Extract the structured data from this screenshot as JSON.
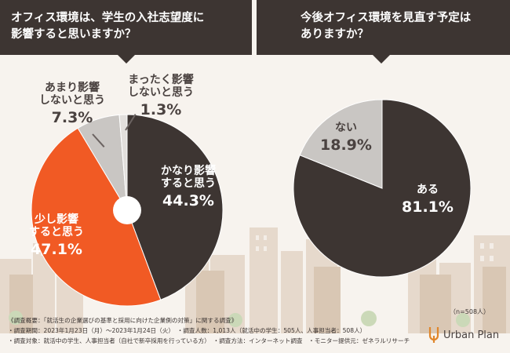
{
  "header_left": {
    "line1": "オフィス環境は、学生の入社志望度に",
    "line2": "影響すると思いますか？"
  },
  "header_right": {
    "line1": "今後オフィス環境を見直す予定は",
    "line2": "ありますか？"
  },
  "chart_data": [
    {
      "type": "pie",
      "title": "オフィス環境は、学生の入社志望度に影響すると思いますか？",
      "slices": [
        {
          "label_1": "かなり影響",
          "label_2": "すると思う",
          "value": 44.3,
          "value_text": "44.3%",
          "color": "#3d3532"
        },
        {
          "label_1": "少し影響",
          "label_2": "すると思う",
          "value": 47.1,
          "value_text": "47.1%",
          "color": "#f15a24"
        },
        {
          "label_1": "あまり影響",
          "label_2": "しないと思う",
          "value": 7.3,
          "value_text": "7.3%",
          "color": "#c9c6c3"
        },
        {
          "label_1": "まったく影響",
          "label_2": "しないと思う",
          "value": 1.3,
          "value_text": "1.3%",
          "color": "#e2dfdc"
        }
      ]
    },
    {
      "type": "pie",
      "title": "今後オフィス環境を見直す予定はありますか？",
      "slices": [
        {
          "label_1": "ある",
          "value": 81.1,
          "value_text": "81.1%",
          "color": "#3d3532"
        },
        {
          "label_1": "ない",
          "value": 18.9,
          "value_text": "18.9%",
          "color": "#c9c6c3"
        }
      ]
    }
  ],
  "n_note": "（n=508人）",
  "footnotes": {
    "line1": "《調査概要：「就活生の企業選びの基準と採用に向けた企業側の対策」に関する調査》",
    "line2": "・調査期間：2023年1月23日（月）～2023年1月24日（火）　・調査人数：1,013人（就活中の学生：505人、人事担当者：508人）",
    "line3": "・調査対象：就活中の学生、人事担当者（自社で新卒採用を行っている方）　・調査方法：インターネット調査　・モニター提供元：ゼネラルリサーチ"
  },
  "brand": "Urban Plan",
  "colors": {
    "dark": "#3d3532",
    "orange": "#f15a24",
    "gray": "#c9c6c3",
    "light_gray": "#e2dfdc"
  }
}
